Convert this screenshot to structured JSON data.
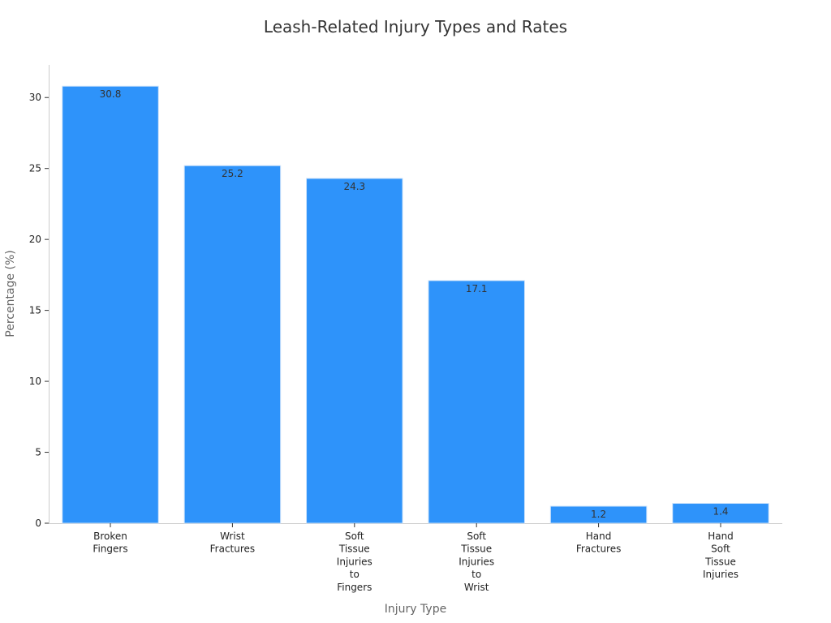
{
  "chart_data": {
    "type": "bar",
    "title": "Leash-Related Injury Types and Rates",
    "xlabel": "Injury Type",
    "ylabel": "Percentage (%)",
    "categories": [
      [
        "Broken",
        "Fingers"
      ],
      [
        "Wrist",
        "Fractures"
      ],
      [
        "Soft",
        "Tissue",
        "Injuries",
        "to",
        "Fingers"
      ],
      [
        "Soft",
        "Tissue",
        "Injuries",
        "to",
        "Wrist"
      ],
      [
        "Hand",
        "Fractures"
      ],
      [
        "Hand",
        "Soft",
        "Tissue",
        "Injuries"
      ]
    ],
    "values": [
      30.8,
      25.2,
      24.3,
      17.1,
      1.2,
      1.4
    ],
    "ylim": [
      0,
      32.3
    ],
    "yticks": [
      0,
      5,
      10,
      15,
      20,
      25,
      30
    ],
    "grid": false,
    "legend": "none",
    "colors": {
      "bar": "#2e93fa",
      "bar_edge": "#cfe4fb"
    }
  }
}
